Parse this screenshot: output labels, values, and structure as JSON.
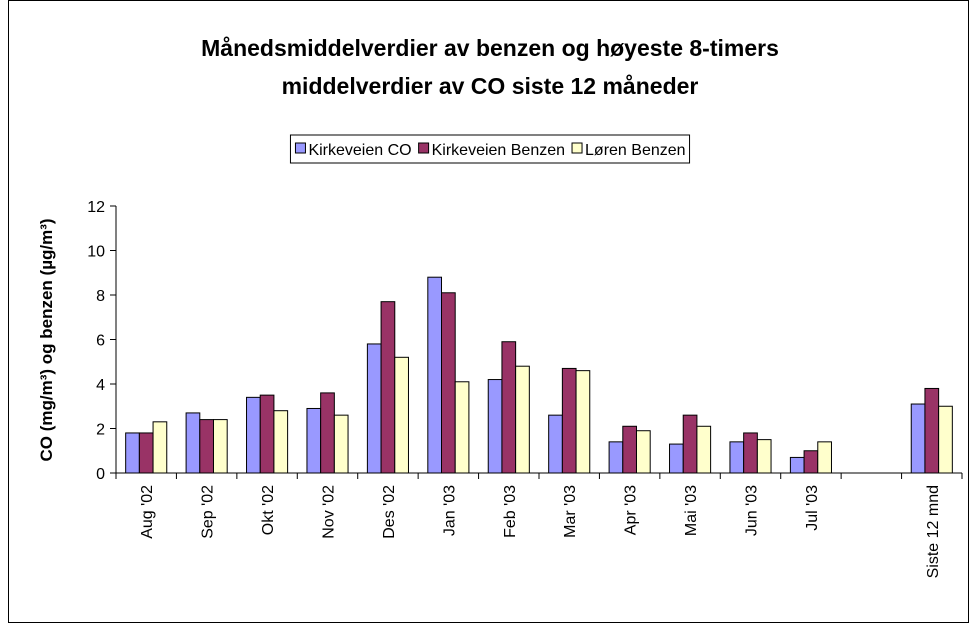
{
  "chart_data": {
    "type": "bar",
    "title": [
      "Månedsmiddelverdier av benzen og høyeste 8-timers",
      "middelverdier av CO siste 12 måneder"
    ],
    "y_label": "CO (mg/m³) og benzen (µg/m³)",
    "categories": [
      "Aug '02",
      "Sep '02",
      "Okt '02",
      "Nov '02",
      "Des '02",
      "Jan '03",
      "Feb '03",
      "Mar '03",
      "Apr '03",
      "Mai '03",
      "Jun '03",
      "Jul '03",
      null,
      "Siste 12 mnd"
    ],
    "series": [
      {
        "name": "Kirkeveien CO",
        "color": "#9999ff",
        "values": [
          1.8,
          2.7,
          3.4,
          2.9,
          5.8,
          8.8,
          4.2,
          2.6,
          1.4,
          1.3,
          1.4,
          0.7,
          null,
          3.1
        ]
      },
      {
        "name": "Kirkeveien Benzen",
        "color": "#993366",
        "values": [
          1.8,
          2.4,
          3.5,
          3.6,
          7.7,
          8.1,
          5.9,
          4.7,
          2.1,
          2.6,
          1.8,
          1.0,
          null,
          3.8
        ]
      },
      {
        "name": "Løren Benzen",
        "color": "#ffffcc",
        "values": [
          2.3,
          2.4,
          2.8,
          2.6,
          5.2,
          4.1,
          4.8,
          4.6,
          1.9,
          2.1,
          1.5,
          1.4,
          null,
          3.0
        ]
      }
    ],
    "ylim": [
      0,
      12
    ],
    "yticks": [
      0,
      2,
      4,
      6,
      8,
      10,
      12
    ],
    "grid": false,
    "legend": "top"
  }
}
